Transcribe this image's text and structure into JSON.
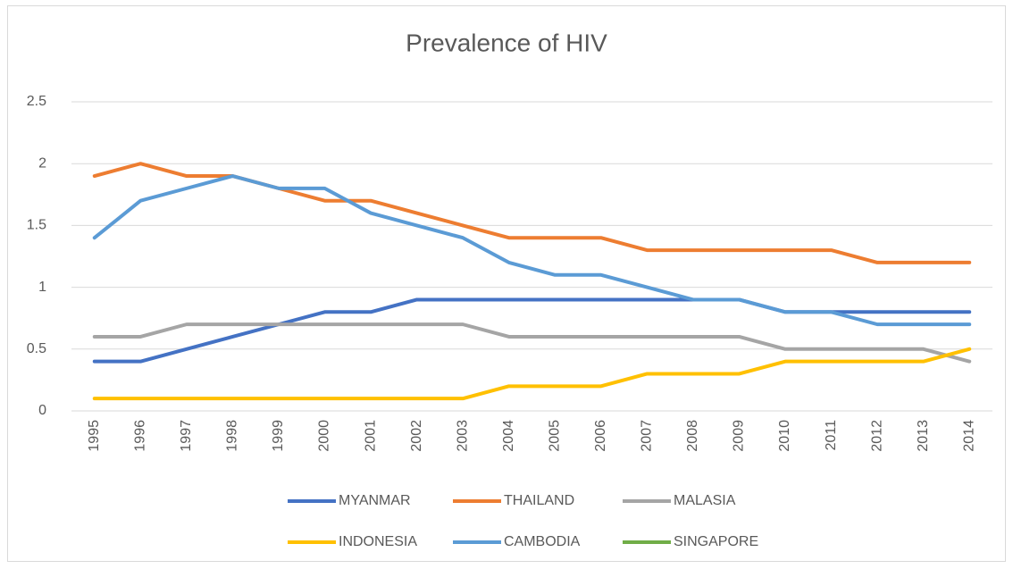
{
  "chart_data": {
    "type": "line",
    "title": "Prevalence of HIV",
    "categories": [
      "1995",
      "1996",
      "1997",
      "1998",
      "1999",
      "2000",
      "2001",
      "2002",
      "2003",
      "2004",
      "2005",
      "2006",
      "2007",
      "2008",
      "2009",
      "2010",
      "2011",
      "2012",
      "2013",
      "2014"
    ],
    "series": [
      {
        "name": "MYANMAR",
        "color": "#4472c4",
        "values": [
          0.4,
          0.4,
          0.5,
          0.6,
          0.7,
          0.8,
          0.8,
          0.9,
          0.9,
          0.9,
          0.9,
          0.9,
          0.9,
          0.9,
          0.9,
          0.8,
          0.8,
          0.8,
          0.8,
          0.8
        ]
      },
      {
        "name": "THAILAND",
        "color": "#ed7d31",
        "values": [
          1.9,
          2.0,
          1.9,
          1.9,
          1.8,
          1.7,
          1.7,
          1.6,
          1.5,
          1.4,
          1.4,
          1.4,
          1.3,
          1.3,
          1.3,
          1.3,
          1.3,
          1.2,
          1.2,
          1.2
        ]
      },
      {
        "name": "MALASIA",
        "color": "#a5a5a5",
        "values": [
          0.6,
          0.6,
          0.7,
          0.7,
          0.7,
          0.7,
          0.7,
          0.7,
          0.7,
          0.6,
          0.6,
          0.6,
          0.6,
          0.6,
          0.6,
          0.5,
          0.5,
          0.5,
          0.5,
          0.4
        ]
      },
      {
        "name": "INDONESIA",
        "color": "#ffc000",
        "values": [
          0.1,
          0.1,
          0.1,
          0.1,
          0.1,
          0.1,
          0.1,
          0.1,
          0.1,
          0.2,
          0.2,
          0.2,
          0.3,
          0.3,
          0.3,
          0.4,
          0.4,
          0.4,
          0.4,
          0.5
        ]
      },
      {
        "name": "CAMBODIA",
        "color": "#5b9bd5",
        "values": [
          1.4,
          1.7,
          1.8,
          1.9,
          1.8,
          1.8,
          1.6,
          1.5,
          1.4,
          1.2,
          1.1,
          1.1,
          1.0,
          0.9,
          0.9,
          0.8,
          0.8,
          0.7,
          0.7,
          0.7
        ]
      },
      {
        "name": "SINGAPORE",
        "color": "#70ad47",
        "values": [
          null,
          null,
          null,
          null,
          null,
          null,
          null,
          null,
          null,
          null,
          null,
          null,
          null,
          null,
          null,
          null,
          null,
          null,
          null,
          null
        ]
      }
    ],
    "ylim": [
      0,
      2.5
    ],
    "yticks": [
      0,
      0.5,
      1,
      1.5,
      2,
      2.5
    ],
    "grid": true
  }
}
